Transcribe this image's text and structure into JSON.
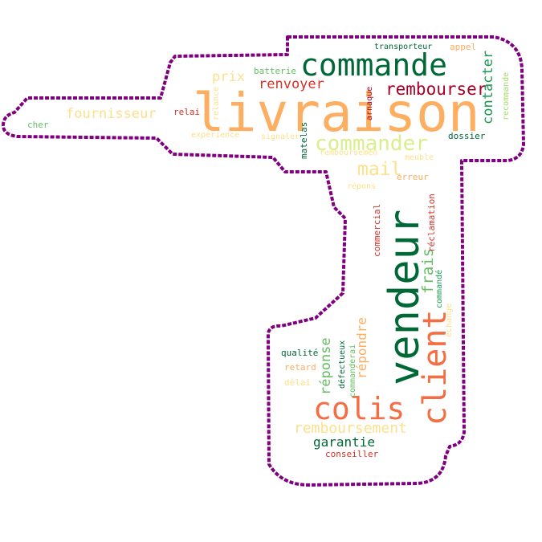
{
  "colors": {
    "outline": "#800080",
    "dark_green": "#006837",
    "green": "#1a9850",
    "light_green": "#66bd63",
    "pale_green": "#a6d96a",
    "yellow_green": "#d9ef8b",
    "pale_yellow": "#fee08b",
    "peach": "#fdae61",
    "orange": "#f46d43",
    "red": "#d73027",
    "dark_red": "#a50026"
  },
  "words": {
    "livraison": "livraison",
    "commande": "commande",
    "vendeur": "vendeur",
    "client": "client",
    "colis": "colis",
    "commander": "commander",
    "rembourser": "rembourser",
    "mail": "mail",
    "renvoyer": "renvoyer",
    "fournisseur": "fournisseur",
    "prix": "prix",
    "contacter": "contacter",
    "remboursement": "remboursement",
    "garantie": "garantie",
    "reponse": "réponse",
    "repondre": "répondre",
    "frais": "frais",
    "commercial": "commercial",
    "reclamation": "réclamation",
    "transporteur": "transporteur",
    "appel": "appel",
    "batterie": "batterie",
    "relance": "relance",
    "relai": "relai",
    "cher": "cher",
    "experience": "expérience",
    "signaler": "signaler",
    "matelas": "matelas",
    "arnaque": "arnaque",
    "recommande": "recommande",
    "dossier": "dossier",
    "remboursemen": "remboursemen",
    "meuble": "meuble",
    "erreur": "erreur",
    "repons": "répons",
    "commande2": "commandé",
    "echange": "échange",
    "qualite": "qualité",
    "defectueux": "défectueux",
    "commanderai": "commanderai",
    "retard": "retard",
    "delai": "délai",
    "conseiller": "conseiller"
  }
}
